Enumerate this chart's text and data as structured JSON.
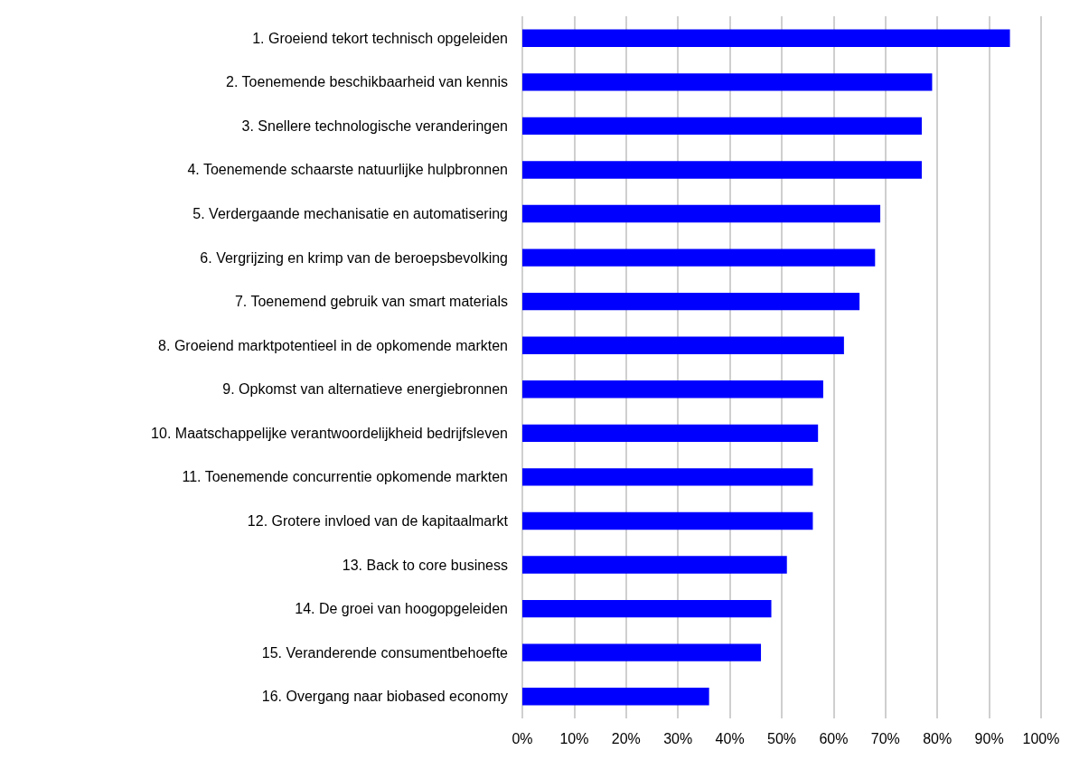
{
  "chart_data": {
    "type": "bar",
    "orientation": "horizontal",
    "categories": [
      "1. Groeiend tekort technisch opgeleiden",
      "2. Toenemende beschikbaarheid van kennis",
      "3. Snellere technologische veranderingen",
      "4. Toenemende schaarste natuurlijke hulpbronnen",
      "5. Verdergaande mechanisatie en automatisering",
      "6. Vergrijzing en krimp van de beroepsbevolking",
      "7. Toenemend gebruik van smart materials",
      "8. Groeiend marktpotentieel in de opkomende markten",
      "9. Opkomst van alternatieve energiebronnen",
      "10. Maatschappelijke verantwoordelijkheid bedrijfsleven",
      "11. Toenemende concurrentie opkomende markten",
      "12. Grotere invloed van de kapitaalmarkt",
      "13. Back to core business",
      "14. De groei van hoogopgeleiden",
      "15. Veranderende consumentbehoefte",
      "16. Overgang naar biobased economy"
    ],
    "values": [
      94,
      79,
      77,
      77,
      69,
      68,
      65,
      62,
      58,
      57,
      56,
      56,
      51,
      48,
      46,
      36
    ],
    "color": "#0000ff",
    "xlim": [
      0,
      100
    ],
    "xticks": [
      {
        "value": 0,
        "label": "0%"
      },
      {
        "value": 10,
        "label": "10%"
      },
      {
        "value": 20,
        "label": "20%"
      },
      {
        "value": 30,
        "label": "30%"
      },
      {
        "value": 40,
        "label": "40%"
      },
      {
        "value": 50,
        "label": "50%"
      },
      {
        "value": 60,
        "label": "60%"
      },
      {
        "value": 70,
        "label": "70%"
      },
      {
        "value": 80,
        "label": "80%"
      },
      {
        "value": 90,
        "label": "90%"
      },
      {
        "value": 100,
        "label": "100%"
      }
    ],
    "grid": "x"
  }
}
